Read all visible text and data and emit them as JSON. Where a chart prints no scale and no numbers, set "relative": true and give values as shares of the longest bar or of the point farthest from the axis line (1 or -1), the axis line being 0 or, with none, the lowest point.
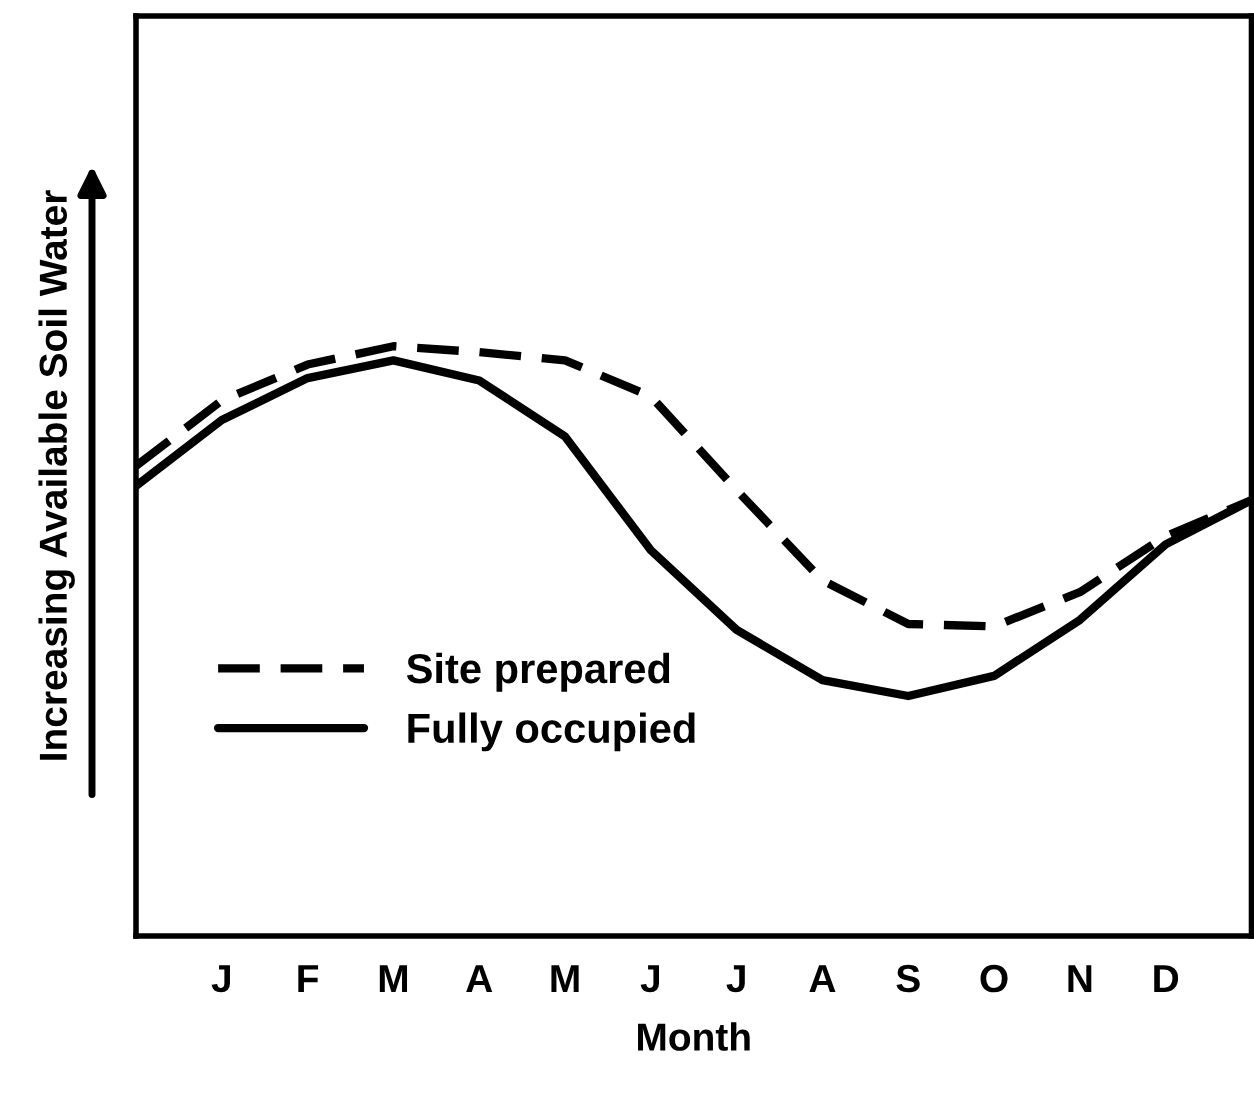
{
  "chart_data": {
    "type": "line",
    "relative": true,
    "xlabel": "Month",
    "ylabel": "Increasing Available Soil Water",
    "categories": [
      null,
      "J",
      "F",
      "M",
      "A",
      "M",
      "J",
      "J",
      "A",
      "S",
      "O",
      "N",
      "D",
      null
    ],
    "legend": "bottom left",
    "grid": false,
    "marker": "none",
    "series": [
      {
        "name": "Site prepared",
        "color": "#000000",
        "line_style": "dashed",
        "values": [
          0.797,
          0.908,
          0.969,
          1.0,
          0.99,
          0.976,
          0.915,
          0.756,
          0.603,
          0.529,
          0.525,
          0.583,
          0.678,
          0.739
        ]
      },
      {
        "name": "Fully occupied",
        "color": "#000000",
        "line_style": "solid",
        "values": [
          0.763,
          0.875,
          0.946,
          0.976,
          0.942,
          0.847,
          0.654,
          0.519,
          0.434,
          0.407,
          0.441,
          0.536,
          0.664,
          0.739
        ]
      }
    ]
  }
}
